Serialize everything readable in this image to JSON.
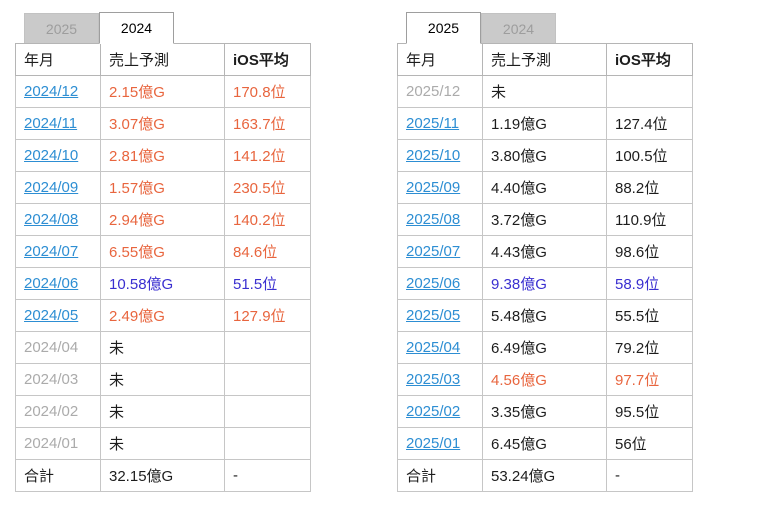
{
  "colors": {
    "link_blue": "#2d8ed3",
    "highlight_orange": "#e8653e",
    "highlight_blue": "#3a2fd0",
    "inactive_gray": "#ababab",
    "inactive_tab_bg": "#cacaca"
  },
  "panels": [
    {
      "tabs": [
        {
          "label": "2025",
          "active": false
        },
        {
          "label": "2024",
          "active": true
        }
      ],
      "headers": [
        "年月",
        "売上予測",
        "iOS平均"
      ],
      "rows": [
        {
          "month": "2024/12",
          "link": true,
          "sales": "2.15億G",
          "ios": "170.8位",
          "color": "orange"
        },
        {
          "month": "2024/11",
          "link": true,
          "sales": "3.07億G",
          "ios": "163.7位",
          "color": "orange"
        },
        {
          "month": "2024/10",
          "link": true,
          "sales": "2.81億G",
          "ios": "141.2位",
          "color": "orange"
        },
        {
          "month": "2024/09",
          "link": true,
          "sales": "1.57億G",
          "ios": "230.5位",
          "color": "orange"
        },
        {
          "month": "2024/08",
          "link": true,
          "sales": "2.94億G",
          "ios": "140.2位",
          "color": "orange"
        },
        {
          "month": "2024/07",
          "link": true,
          "sales": "6.55億G",
          "ios": "84.6位",
          "color": "orange"
        },
        {
          "month": "2024/06",
          "link": true,
          "sales": "10.58億G",
          "ios": "51.5位",
          "color": "blue"
        },
        {
          "month": "2024/05",
          "link": true,
          "sales": "2.49億G",
          "ios": "127.9位",
          "color": "orange"
        },
        {
          "month": "2024/04",
          "link": false,
          "sales": "未",
          "ios": "",
          "color": "black"
        },
        {
          "month": "2024/03",
          "link": false,
          "sales": "未",
          "ios": "",
          "color": "black"
        },
        {
          "month": "2024/02",
          "link": false,
          "sales": "未",
          "ios": "",
          "color": "black"
        },
        {
          "month": "2024/01",
          "link": false,
          "sales": "未",
          "ios": "",
          "color": "black"
        }
      ],
      "total": {
        "label": "合計",
        "sales": "32.15億G",
        "ios": "-"
      }
    },
    {
      "tabs": [
        {
          "label": "2025",
          "active": true
        },
        {
          "label": "2024",
          "active": false
        }
      ],
      "headers": [
        "年月",
        "売上予測",
        "iOS平均"
      ],
      "rows": [
        {
          "month": "2025/12",
          "link": false,
          "sales": "未",
          "ios": "",
          "color": "black"
        },
        {
          "month": "2025/11",
          "link": true,
          "sales": "1.19億G",
          "ios": "127.4位",
          "color": "black"
        },
        {
          "month": "2025/10",
          "link": true,
          "sales": "3.80億G",
          "ios": "100.5位",
          "color": "black"
        },
        {
          "month": "2025/09",
          "link": true,
          "sales": "4.40億G",
          "ios": "88.2位",
          "color": "black"
        },
        {
          "month": "2025/08",
          "link": true,
          "sales": "3.72億G",
          "ios": "110.9位",
          "color": "black"
        },
        {
          "month": "2025/07",
          "link": true,
          "sales": "4.43億G",
          "ios": "98.6位",
          "color": "black"
        },
        {
          "month": "2025/06",
          "link": true,
          "sales": "9.38億G",
          "ios": "58.9位",
          "color": "blue"
        },
        {
          "month": "2025/05",
          "link": true,
          "sales": "5.48億G",
          "ios": "55.5位",
          "color": "black"
        },
        {
          "month": "2025/04",
          "link": true,
          "sales": "6.49億G",
          "ios": "79.2位",
          "color": "black"
        },
        {
          "month": "2025/03",
          "link": true,
          "sales": "4.56億G",
          "ios": "97.7位",
          "color": "orange"
        },
        {
          "month": "2025/02",
          "link": true,
          "sales": "3.35億G",
          "ios": "95.5位",
          "color": "black"
        },
        {
          "month": "2025/01",
          "link": true,
          "sales": "6.45億G",
          "ios": "56位",
          "color": "black"
        }
      ],
      "total": {
        "label": "合計",
        "sales": "53.24億G",
        "ios": "-"
      }
    }
  ]
}
